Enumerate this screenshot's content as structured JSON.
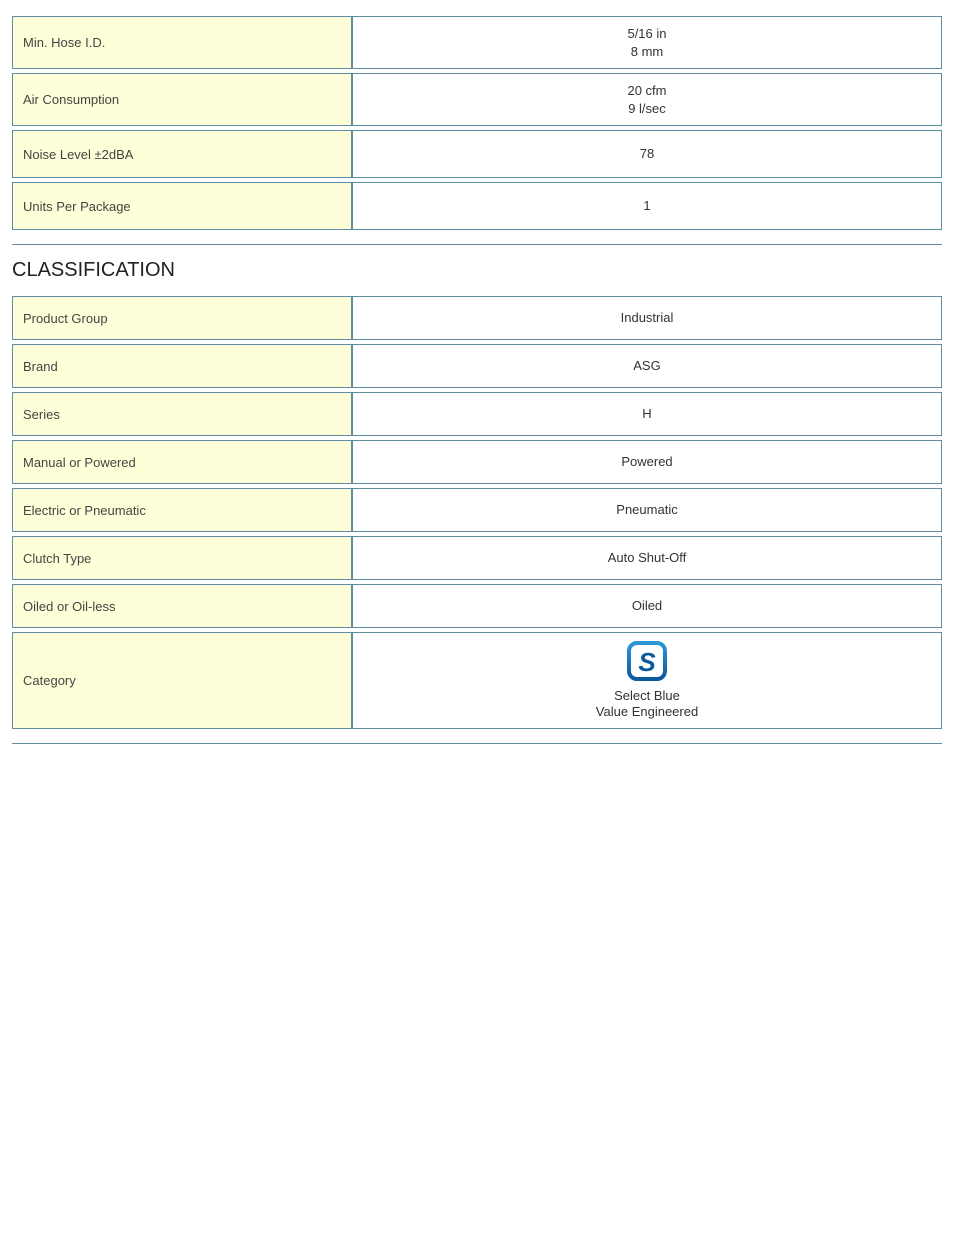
{
  "colors": {
    "border": "#5f8ca3",
    "label_bg": "#feffd8",
    "icon_blue_dark": "#0a5a9c",
    "icon_blue_light": "#2b96d8",
    "text": "#333333"
  },
  "specs": {
    "rows": [
      {
        "label": "Min. Hose I.D.",
        "value_lines": [
          "5/16 in",
          "8 mm"
        ]
      },
      {
        "label": "Air Consumption",
        "value_lines": [
          "20 cfm",
          "9 l/sec"
        ]
      },
      {
        "label": "Noise Level ±2dBA",
        "value_lines": [
          "78"
        ]
      },
      {
        "label": "Units Per Package",
        "value_lines": [
          "1"
        ]
      }
    ]
  },
  "classification": {
    "heading": "CLASSIFICATION",
    "rows": [
      {
        "label": "Product Group",
        "value": "Industrial"
      },
      {
        "label": "Brand",
        "value": "ASG"
      },
      {
        "label": "Series",
        "value": "H"
      },
      {
        "label": "Manual or Powered",
        "value": "Powered"
      },
      {
        "label": "Electric or Pneumatic",
        "value": "Pneumatic"
      },
      {
        "label": "Clutch Type",
        "value": "Auto Shut-Off"
      },
      {
        "label": "Oiled or Oil-less",
        "value": "Oiled"
      }
    ],
    "category": {
      "label": "Category",
      "icon_letter": "S",
      "line1": "Select Blue",
      "line2": "Value Engineered"
    }
  }
}
